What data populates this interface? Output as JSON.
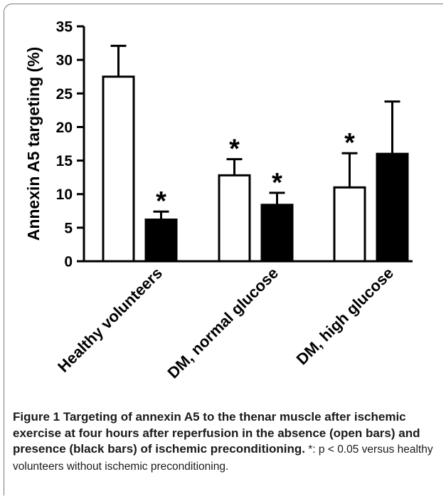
{
  "chart_data": {
    "type": "bar",
    "categories": [
      "Healthy volunteers",
      "DM, normal glucose",
      "DM, high glucose"
    ],
    "series": [
      {
        "name": "open bars",
        "values": [
          27.5,
          12.8,
          11.0
        ],
        "errors": [
          4.6,
          2.4,
          5.1
        ],
        "fill": "#ffffff",
        "significant": [
          false,
          true,
          true
        ]
      },
      {
        "name": "black bars",
        "values": [
          6.2,
          8.4,
          16.0
        ],
        "errors": [
          1.2,
          1.8,
          7.8
        ],
        "fill": "#000000",
        "significant": [
          true,
          true,
          false
        ]
      }
    ],
    "significance_marker": "*",
    "ylabel": "Annexin A5 targeting (%)",
    "xlabel": "",
    "ylim": [
      0,
      35
    ],
    "yticks": [
      0,
      5,
      10,
      15,
      20,
      25,
      30,
      35
    ],
    "grid": false,
    "legend": "none"
  },
  "caption": {
    "title": "Figure 1 Targeting of annexin A5 to the thenar muscle after ischemic exercise at four hours after reperfusion in the absence (open bars) and presence (black bars) of ischemic preconditioning.",
    "note": " *: p < 0.05 versus healthy volunteers without ischemic preconditioning."
  }
}
